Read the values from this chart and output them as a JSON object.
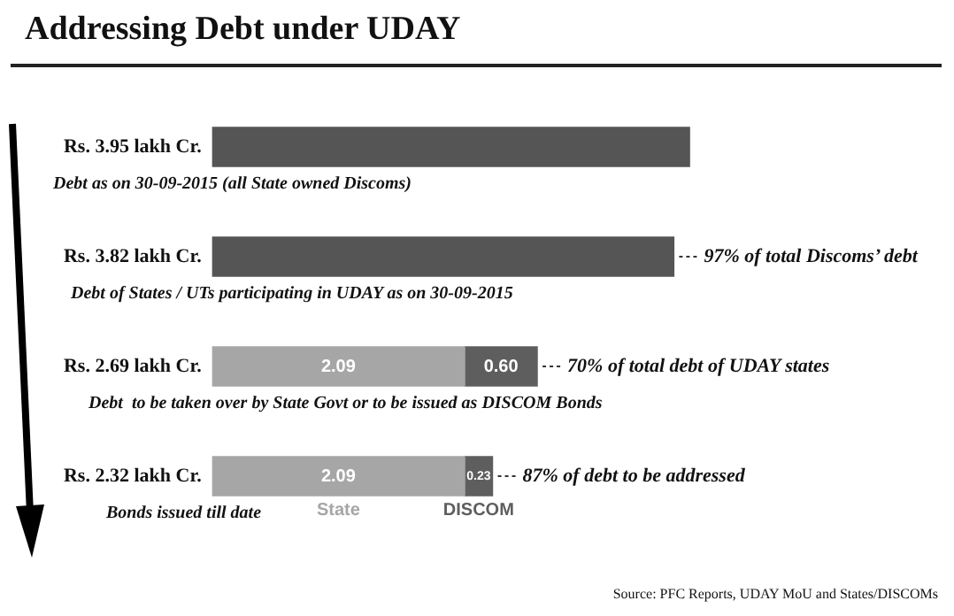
{
  "chart_data": {
    "type": "bar",
    "orientation": "horizontal",
    "stacked": true,
    "title": "Addressing Debt under UDAY",
    "categories": [
      "Rs. 3.95 lakh Cr.",
      "Rs. 3.82 lakh Cr.",
      "Rs. 2.69 lakh Cr.",
      "Rs. 2.32 lakh Cr."
    ],
    "series": [
      {
        "color": "#555555",
        "values": [
          3.95,
          3.82,
          null,
          null
        ]
      },
      {
        "name": "State",
        "color": "#a6a6a6",
        "values": [
          null,
          null,
          2.09,
          2.09
        ],
        "value_labels": [
          null,
          null,
          "2.09",
          "2.09"
        ]
      },
      {
        "name": "DISCOM",
        "color": "#5e5e5e",
        "values": [
          null,
          null,
          0.6,
          0.23
        ],
        "value_labels": [
          null,
          null,
          "0.60",
          "0.23"
        ]
      }
    ],
    "tick_labels": "y",
    "grid": false,
    "legend": false,
    "annotations": [
      "Debt as on 30-09-2015 (all State owned Discoms)",
      "Debt of States / UTs participating in UDAY as on 30-09-2015",
      "Debt  to be taken over by State Govt or to be issued as DISCOM Bonds",
      "Bonds issued till date",
      {
        "text": "97% of total Discoms’ debt",
        "x": 3.82,
        "y": "Rs. 3.82 lakh Cr."
      },
      {
        "text": "70% of total debt of UDAY states",
        "x": 2.69,
        "y": "Rs. 2.69 lakh Cr."
      },
      {
        "text": "87% of debt to be addressed",
        "x": 2.32,
        "y": "Rs. 2.32 lakh Cr."
      },
      "Source: PFC Reports, UDAY MoU and States/DISCOMs"
    ]
  }
}
